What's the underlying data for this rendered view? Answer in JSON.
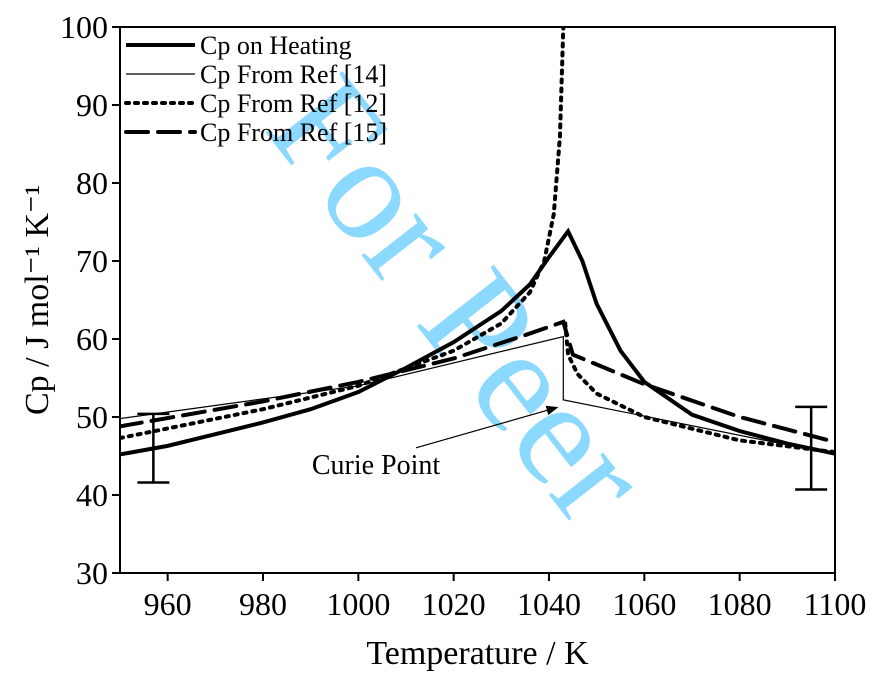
{
  "chart_data": {
    "type": "line",
    "xlabel": "Temperature / K",
    "ylabel": "Cp / J mol⁻¹ K⁻¹",
    "xlim": [
      950,
      1100
    ],
    "xticks": [
      960,
      980,
      1000,
      1020,
      1040,
      1060,
      1080,
      1100
    ],
    "ylim": [
      30,
      100
    ],
    "yticks": [
      30,
      40,
      50,
      60,
      70,
      80,
      90,
      100
    ],
    "legend": "upper left",
    "series": [
      {
        "name": "Cp on Heating",
        "color": "#000000",
        "width": 4,
        "dash": "none",
        "x": [
          950,
          960,
          970,
          980,
          990,
          1000,
          1010,
          1020,
          1030,
          1036,
          1040,
          1044,
          1047,
          1050,
          1055,
          1060,
          1070,
          1080,
          1090,
          1100
        ],
        "values": [
          45.2,
          46.3,
          47.8,
          49.3,
          51,
          53.2,
          56.3,
          59.6,
          63.6,
          67,
          70.5,
          73.8,
          70,
          64.5,
          58.5,
          54.5,
          50.3,
          48.2,
          46.6,
          45.3
        ]
      },
      {
        "name": "Cp From Ref [14]",
        "color": "#000000",
        "width": 1.2,
        "dash": "none",
        "x": [
          950,
          1000,
          1043,
          1043,
          1100
        ],
        "values": [
          49.8,
          54,
          60.3,
          52.2,
          45.2
        ]
      },
      {
        "name": "Cp From Ref [12]",
        "color": "#000000",
        "width": 4,
        "dash": "3 6",
        "x": [
          950,
          980,
          1000,
          1020,
          1030,
          1036,
          1039,
          1041,
          1042.3,
          1043,
          1043.2,
          1043.4,
          1044,
          1046,
          1050,
          1060,
          1080,
          1100
        ],
        "values": [
          47.3,
          51,
          54,
          58.5,
          62,
          66,
          70,
          76,
          86,
          100,
          null,
          62,
          58,
          55.5,
          53,
          50,
          47,
          45.5
        ]
      },
      {
        "name": "Cp From Ref [15]",
        "color": "#000000",
        "width": 4,
        "dash": "22 10",
        "x": [
          950,
          980,
          1000,
          1020,
          1035,
          1043,
          1045,
          1060,
          1080,
          1100
        ],
        "values": [
          48.8,
          52,
          54.5,
          57.5,
          60.5,
          62.2,
          58,
          54.2,
          50,
          46.8
        ]
      }
    ],
    "error_bars": [
      {
        "x": 957,
        "y": 46,
        "error": 4.4
      },
      {
        "x": 1095,
        "y": 46,
        "error": 5.3
      }
    ],
    "annotation": {
      "text": "Curie Point",
      "x": 1010,
      "y": 44,
      "arrow_x": 1043,
      "arrow_y": 52
    },
    "watermark": "For Peer"
  }
}
